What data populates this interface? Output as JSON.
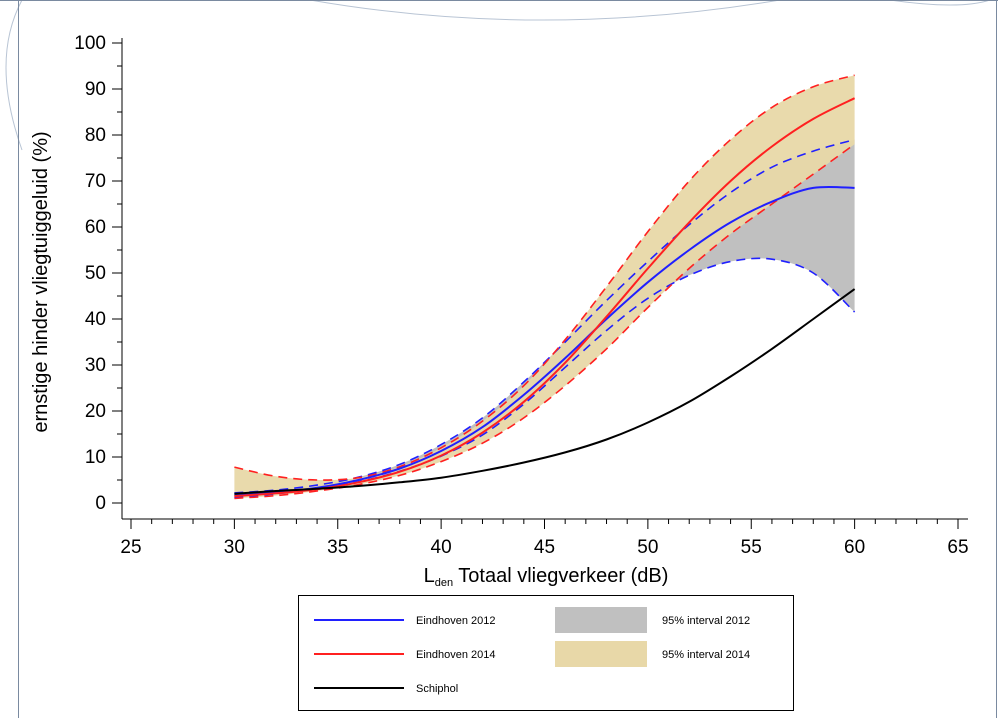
{
  "chart_data": {
    "type": "area",
    "title": "",
    "xlabel_sub": "den",
    "xlabel_main": "L",
    "xlabel_rest": " Totaal vliegverkeer (dB)",
    "ylabel": "ernstige hinder vliegtuiggeluid (%)",
    "xlim": [
      25,
      65
    ],
    "ylim": [
      0,
      100
    ],
    "x_ticks": [
      "25",
      "30",
      "35",
      "40",
      "45",
      "50",
      "55",
      "60",
      "65"
    ],
    "y_ticks": [
      "0",
      "10",
      "20",
      "30",
      "40",
      "50",
      "60",
      "70",
      "80",
      "90",
      "100"
    ],
    "grid": false,
    "legend_position": "bottom",
    "x": [
      30,
      32,
      34,
      36,
      38,
      40,
      42,
      44,
      46,
      48,
      50,
      52,
      54,
      56,
      58,
      60
    ],
    "series": [
      {
        "name": "Eindhoven 2012",
        "color": "#2020ff",
        "values": [
          1.6,
          2.3,
          3.3,
          5.0,
          7.5,
          11.3,
          16.5,
          23.5,
          31.5,
          40.0,
          48.0,
          55.0,
          61.0,
          65.5,
          68.5,
          68.5
        ]
      },
      {
        "name": "Eindhoven 2014",
        "color": "#ff2020",
        "values": [
          1.5,
          2.1,
          3.0,
          4.5,
          6.8,
          10.3,
          15.3,
          22.0,
          30.5,
          40.5,
          51.0,
          61.0,
          70.0,
          77.5,
          83.5,
          88.0
        ]
      },
      {
        "name": "Schiphol",
        "color": "#000000",
        "values": [
          2.0,
          2.6,
          3.1,
          3.7,
          4.5,
          5.5,
          7.0,
          8.8,
          11.0,
          13.8,
          17.5,
          22.0,
          27.5,
          33.5,
          40.0,
          46.5
        ]
      }
    ],
    "bands": [
      {
        "name": "95% interval 2012",
        "color": "#c0c0c0",
        "edge_color": "#2020ff",
        "lower": [
          1.2,
          2.0,
          3.0,
          4.6,
          6.9,
          10.2,
          14.8,
          21.5,
          29.5,
          37.5,
          44.5,
          49.5,
          52.5,
          53.0,
          50.0,
          41.5
        ],
        "upper": [
          2.2,
          2.8,
          3.9,
          5.6,
          8.4,
          12.7,
          18.5,
          26.3,
          35.0,
          44.0,
          52.5,
          60.5,
          67.5,
          73.0,
          76.5,
          79.0
        ]
      },
      {
        "name": "95% interval 2014",
        "color": "#e8d8a8",
        "edge_color": "#ff2020",
        "lower": [
          1.0,
          1.6,
          2.6,
          4.0,
          6.0,
          9.0,
          13.0,
          18.5,
          25.5,
          33.5,
          42.5,
          51.0,
          58.5,
          65.0,
          71.5,
          78.0
        ],
        "upper": [
          7.8,
          5.8,
          5.0,
          5.5,
          7.9,
          12.0,
          17.8,
          25.5,
          35.5,
          47.0,
          59.0,
          70.0,
          79.0,
          86.0,
          90.5,
          93.0
        ]
      }
    ],
    "legend": {
      "entries": [
        {
          "label": "Eindhoven 2012",
          "kind": "line",
          "color": "#2020ff"
        },
        {
          "label": "95% interval 2012",
          "kind": "swatch",
          "color": "#c0c0c0"
        },
        {
          "label": "Eindhoven 2014",
          "kind": "line",
          "color": "#ff2020"
        },
        {
          "label": "95% interval 2014",
          "kind": "swatch",
          "color": "#e8d8a8"
        },
        {
          "label": "Schiphol",
          "kind": "line",
          "color": "#000000"
        }
      ]
    }
  }
}
